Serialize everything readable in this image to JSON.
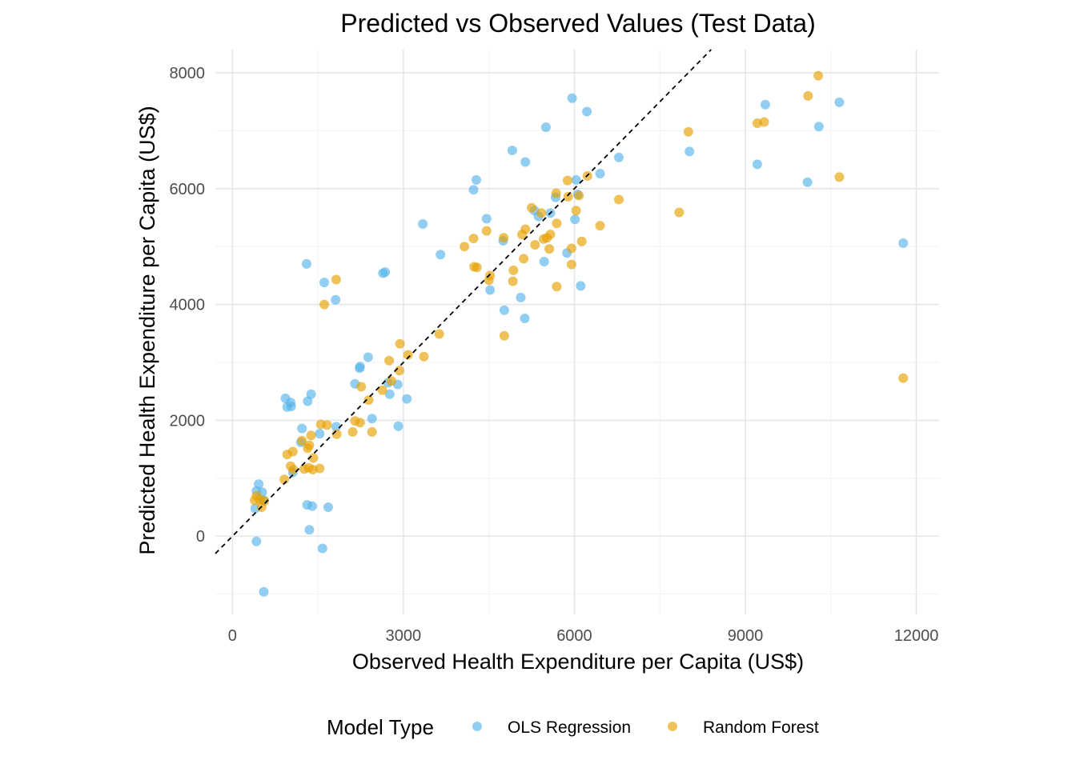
{
  "chart_data": {
    "type": "scatter",
    "title": "Predicted vs Observed Values (Test Data)",
    "xlabel": "Observed Health Expenditure per Capita (US$)",
    "ylabel": "Predicted Health Expenditure per Capita (US$)",
    "xlim": [
      -300,
      12400
    ],
    "ylim": [
      -1350,
      8400
    ],
    "x_ticks": [
      0,
      3000,
      6000,
      9000,
      12000
    ],
    "x_tick_labels": [
      "0",
      "3000",
      "6000",
      "9000",
      "12000"
    ],
    "y_ticks": [
      0,
      2000,
      4000,
      6000,
      8000
    ],
    "y_tick_labels": [
      "0",
      "2000",
      "4000",
      "6000",
      "8000"
    ],
    "grid": true,
    "reference_line": {
      "style": "dashed",
      "slope": 1,
      "intercept": 0,
      "color": "#000000"
    },
    "legend": {
      "title": "Model Type",
      "position": "bottom",
      "entries": [
        "OLS Regression",
        "Random Forest"
      ]
    },
    "series": [
      {
        "name": "OLS Regression",
        "color": "#56B4E9",
        "points": [
          [
            400,
            480
          ],
          [
            420,
            780
          ],
          [
            460,
            900
          ],
          [
            520,
            760
          ],
          [
            550,
            620
          ],
          [
            420,
            -90
          ],
          [
            550,
            -960
          ],
          [
            930,
            2380
          ],
          [
            960,
            2230
          ],
          [
            1020,
            2310
          ],
          [
            1030,
            2240
          ],
          [
            1060,
            1100
          ],
          [
            1200,
            1620
          ],
          [
            1220,
            1860
          ],
          [
            1300,
            4700
          ],
          [
            1310,
            540
          ],
          [
            1320,
            2330
          ],
          [
            1350,
            110
          ],
          [
            1380,
            2450
          ],
          [
            1400,
            520
          ],
          [
            1530,
            1770
          ],
          [
            1580,
            -210
          ],
          [
            1610,
            4380
          ],
          [
            1680,
            500
          ],
          [
            1810,
            4080
          ],
          [
            1820,
            1890
          ],
          [
            2150,
            2630
          ],
          [
            2230,
            2900
          ],
          [
            2240,
            2930
          ],
          [
            2380,
            3090
          ],
          [
            2450,
            2030
          ],
          [
            2640,
            4540
          ],
          [
            2680,
            4560
          ],
          [
            2730,
            2650
          ],
          [
            2760,
            2450
          ],
          [
            2900,
            2620
          ],
          [
            2910,
            1900
          ],
          [
            3060,
            2370
          ],
          [
            3340,
            5390
          ],
          [
            3650,
            4860
          ],
          [
            4230,
            5980
          ],
          [
            4280,
            6150
          ],
          [
            4460,
            5480
          ],
          [
            4520,
            4250
          ],
          [
            4750,
            5100
          ],
          [
            4770,
            3900
          ],
          [
            4910,
            6660
          ],
          [
            5060,
            4120
          ],
          [
            5130,
            3760
          ],
          [
            5140,
            6460
          ],
          [
            5300,
            5620
          ],
          [
            5370,
            5520
          ],
          [
            5470,
            4740
          ],
          [
            5500,
            7060
          ],
          [
            5580,
            5580
          ],
          [
            5670,
            5850
          ],
          [
            5870,
            4890
          ],
          [
            5960,
            7560
          ],
          [
            6010,
            5470
          ],
          [
            6030,
            6150
          ],
          [
            6060,
            5900
          ],
          [
            6110,
            4320
          ],
          [
            6220,
            7330
          ],
          [
            6450,
            6260
          ],
          [
            6780,
            6540
          ],
          [
            8020,
            6640
          ],
          [
            9210,
            6420
          ],
          [
            9350,
            7450
          ],
          [
            10090,
            6110
          ],
          [
            10290,
            7070
          ],
          [
            10650,
            7490
          ],
          [
            11770,
            5060
          ]
        ]
      },
      {
        "name": "Random Forest",
        "color": "#E69F00",
        "points": [
          [
            390,
            620
          ],
          [
            420,
            700
          ],
          [
            480,
            630
          ],
          [
            510,
            500
          ],
          [
            560,
            610
          ],
          [
            910,
            980
          ],
          [
            960,
            1410
          ],
          [
            1020,
            1210
          ],
          [
            1060,
            1460
          ],
          [
            1070,
            1150
          ],
          [
            1220,
            1650
          ],
          [
            1260,
            1160
          ],
          [
            1320,
            1520
          ],
          [
            1340,
            1180
          ],
          [
            1350,
            1570
          ],
          [
            1380,
            1740
          ],
          [
            1410,
            1150
          ],
          [
            1420,
            1350
          ],
          [
            1530,
            1170
          ],
          [
            1550,
            1930
          ],
          [
            1610,
            4000
          ],
          [
            1660,
            1920
          ],
          [
            1820,
            4430
          ],
          [
            1830,
            1760
          ],
          [
            2110,
            1800
          ],
          [
            2150,
            1990
          ],
          [
            2240,
            1960
          ],
          [
            2260,
            2580
          ],
          [
            2390,
            2350
          ],
          [
            2450,
            1800
          ],
          [
            2630,
            2520
          ],
          [
            2750,
            3030
          ],
          [
            2790,
            2680
          ],
          [
            2930,
            2860
          ],
          [
            2940,
            3320
          ],
          [
            3080,
            3130
          ],
          [
            3360,
            3100
          ],
          [
            3630,
            3490
          ],
          [
            4070,
            5000
          ],
          [
            4230,
            5140
          ],
          [
            4240,
            4650
          ],
          [
            4290,
            4640
          ],
          [
            4460,
            5270
          ],
          [
            4500,
            4420
          ],
          [
            4520,
            4500
          ],
          [
            4760,
            5150
          ],
          [
            4770,
            3460
          ],
          [
            4920,
            4400
          ],
          [
            4930,
            4590
          ],
          [
            5080,
            5210
          ],
          [
            5110,
            4790
          ],
          [
            5140,
            5300
          ],
          [
            5250,
            5670
          ],
          [
            5310,
            5030
          ],
          [
            5420,
            5580
          ],
          [
            5460,
            5130
          ],
          [
            5520,
            5150
          ],
          [
            5560,
            4960
          ],
          [
            5580,
            5210
          ],
          [
            5680,
            5920
          ],
          [
            5690,
            5400
          ],
          [
            5690,
            4310
          ],
          [
            5880,
            6140
          ],
          [
            5890,
            5860
          ],
          [
            5950,
            4970
          ],
          [
            5950,
            4690
          ],
          [
            6030,
            5620
          ],
          [
            6080,
            5880
          ],
          [
            6130,
            5090
          ],
          [
            6230,
            6220
          ],
          [
            6450,
            5360
          ],
          [
            6780,
            5810
          ],
          [
            7840,
            5590
          ],
          [
            8000,
            6980
          ],
          [
            9210,
            7130
          ],
          [
            9330,
            7150
          ],
          [
            10100,
            7600
          ],
          [
            10280,
            7950
          ],
          [
            10650,
            6200
          ],
          [
            11770,
            2730
          ]
        ]
      }
    ]
  }
}
